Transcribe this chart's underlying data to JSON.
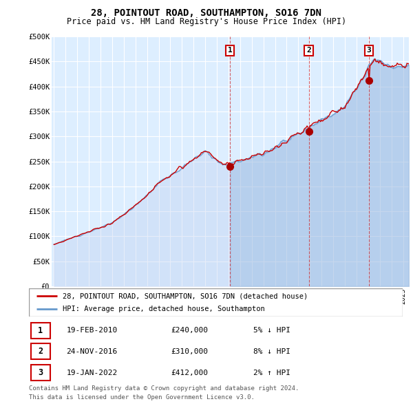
{
  "title": "28, POINTOUT ROAD, SOUTHAMPTON, SO16 7DN",
  "subtitle": "Price paid vs. HM Land Registry's House Price Index (HPI)",
  "ylabel_ticks": [
    "£0",
    "£50K",
    "£100K",
    "£150K",
    "£200K",
    "£250K",
    "£300K",
    "£350K",
    "£400K",
    "£450K",
    "£500K"
  ],
  "ytick_values": [
    0,
    50000,
    100000,
    150000,
    200000,
    250000,
    300000,
    350000,
    400000,
    450000,
    500000
  ],
  "xlim_start": 1994.8,
  "xlim_end": 2025.5,
  "ylim_min": 0,
  "ylim_max": 500000,
  "background_color": "#ffffff",
  "plot_bg_color": "#ddeeff",
  "grid_color": "#ffffff",
  "sale_color": "#cc0000",
  "hpi_color": "#6699cc",
  "hpi_fill_color": "#bbccee",
  "transaction1": {
    "date": "19-FEB-2010",
    "price": 240000,
    "label": "1",
    "year": 2010.13
  },
  "transaction2": {
    "date": "24-NOV-2016",
    "price": 310000,
    "label": "2",
    "year": 2016.9
  },
  "transaction3": {
    "date": "19-JAN-2022",
    "price": 412000,
    "label": "3",
    "year": 2022.05
  },
  "legend_label1": "28, POINTOUT ROAD, SOUTHAMPTON, SO16 7DN (detached house)",
  "legend_label2": "HPI: Average price, detached house, Southampton",
  "footer1": "Contains HM Land Registry data © Crown copyright and database right 2024.",
  "footer2": "This data is licensed under the Open Government Licence v3.0.",
  "table_rows": [
    {
      "num": "1",
      "date": "19-FEB-2010",
      "price": "£240,000",
      "pct": "5% ↓ HPI"
    },
    {
      "num": "2",
      "date": "24-NOV-2016",
      "price": "£310,000",
      "pct": "8% ↓ HPI"
    },
    {
      "num": "3",
      "date": "19-JAN-2022",
      "price": "£412,000",
      "pct": "2% ↑ HPI"
    }
  ]
}
